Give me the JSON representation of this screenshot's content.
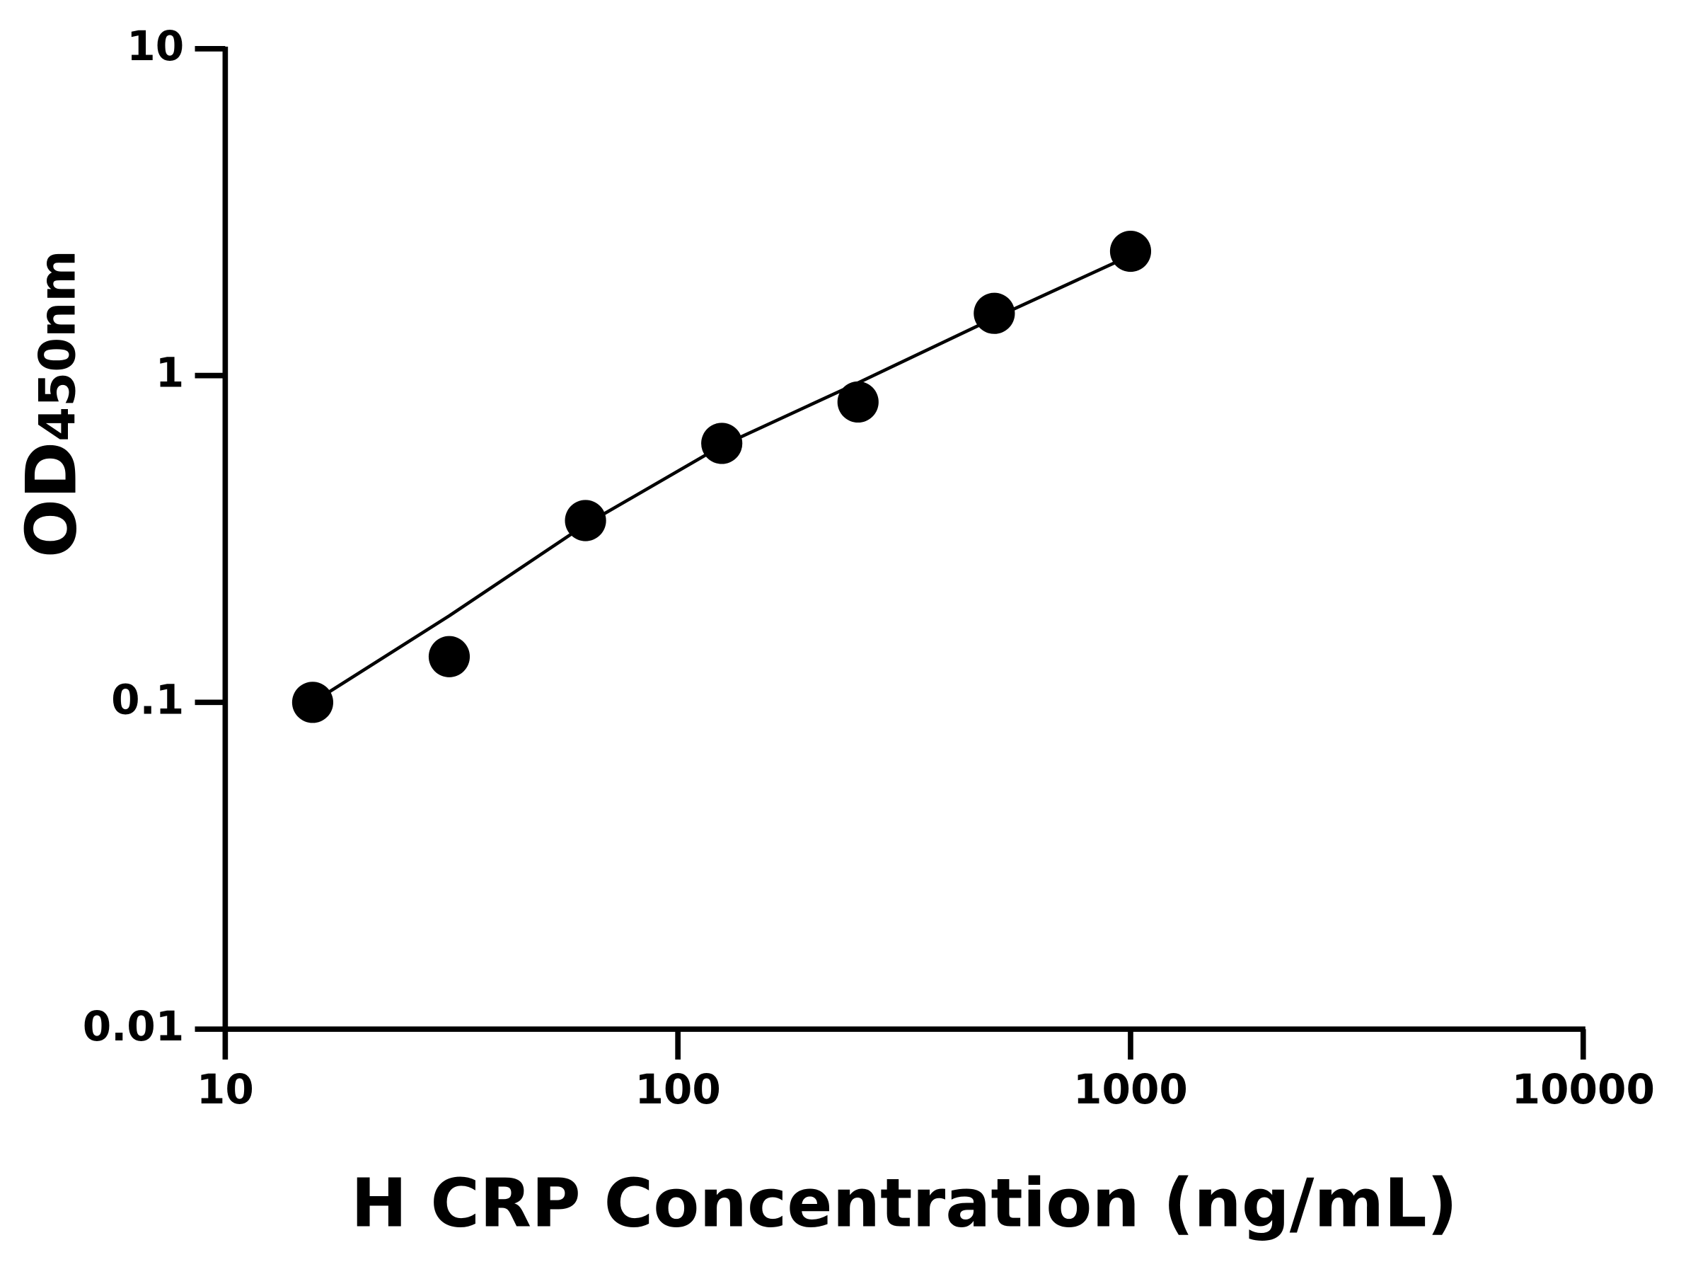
{
  "chart_data": {
    "type": "scatter",
    "xlabel": "H CRP Concentration (ng/mL)",
    "ylabel": "OD",
    "ylabel_subscript": "450nm",
    "xscale": "log",
    "yscale": "log",
    "xlim": [
      10,
      10000
    ],
    "ylim": [
      0.01,
      10
    ],
    "xticks": [
      10,
      100,
      1000,
      10000
    ],
    "yticks": [
      0.01,
      0.1,
      1,
      10
    ],
    "series": [
      {
        "type": "scatter",
        "color": "#000000",
        "x": [
          15.6,
          31.25,
          62.5,
          125,
          250,
          500,
          1000
        ],
        "values": [
          0.1,
          0.138,
          0.36,
          0.62,
          0.83,
          1.55,
          2.4
        ]
      },
      {
        "type": "line",
        "color": "#000000",
        "x": [
          15.6,
          31.25,
          62.5,
          125,
          250,
          500,
          1000
        ],
        "values": [
          0.1,
          0.184,
          0.35,
          0.61,
          0.95,
          1.5,
          2.33
        ]
      }
    ]
  }
}
